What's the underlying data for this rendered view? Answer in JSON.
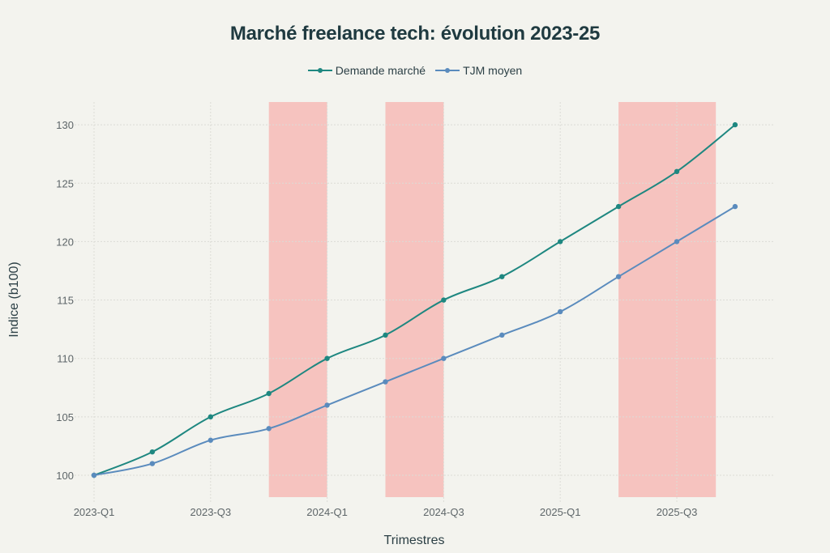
{
  "chart_data": {
    "type": "line",
    "title": "Marché freelance tech: évolution 2023-25",
    "xlabel": "Trimestres",
    "ylabel": "Indice (b100)",
    "x": [
      "2023-Q1",
      "2023-Q2",
      "2023-Q3",
      "2023-Q4",
      "2024-Q1",
      "2024-Q2",
      "2024-Q3",
      "2024-Q4",
      "2025-Q1",
      "2025-Q2",
      "2025-Q3",
      "2025-Q4"
    ],
    "x_tick_labels": [
      "2023-Q1",
      "2023-Q3",
      "2024-Q1",
      "2024-Q3",
      "2025-Q1",
      "2025-Q3"
    ],
    "y_ticks": [
      100,
      105,
      110,
      115,
      120,
      125,
      130
    ],
    "ylim": [
      98,
      132
    ],
    "grid": true,
    "legend_position": "top-center",
    "series": [
      {
        "name": "Demande marché",
        "color": "#1e8780",
        "values": [
          100,
          102,
          105,
          107,
          110,
          112,
          115,
          117,
          120,
          123,
          126,
          130
        ]
      },
      {
        "name": "TJM moyen",
        "color": "#5a8bbd",
        "values": [
          100,
          101,
          103,
          104,
          106,
          108,
          110,
          112,
          114,
          117,
          120,
          123
        ]
      }
    ],
    "shaded_regions": [
      {
        "x_start": "2023-Q4",
        "x_end": "2024-Q1",
        "color": "#f6c3bf"
      },
      {
        "x_start": "2024-Q2",
        "x_end": "2024-Q3",
        "color": "#f6c3bf"
      },
      {
        "x_start": "2025-Q2",
        "x_end": "2025-Q4",
        "end_offset_quarters": -0.33,
        "color": "#f6c3bf"
      }
    ]
  }
}
